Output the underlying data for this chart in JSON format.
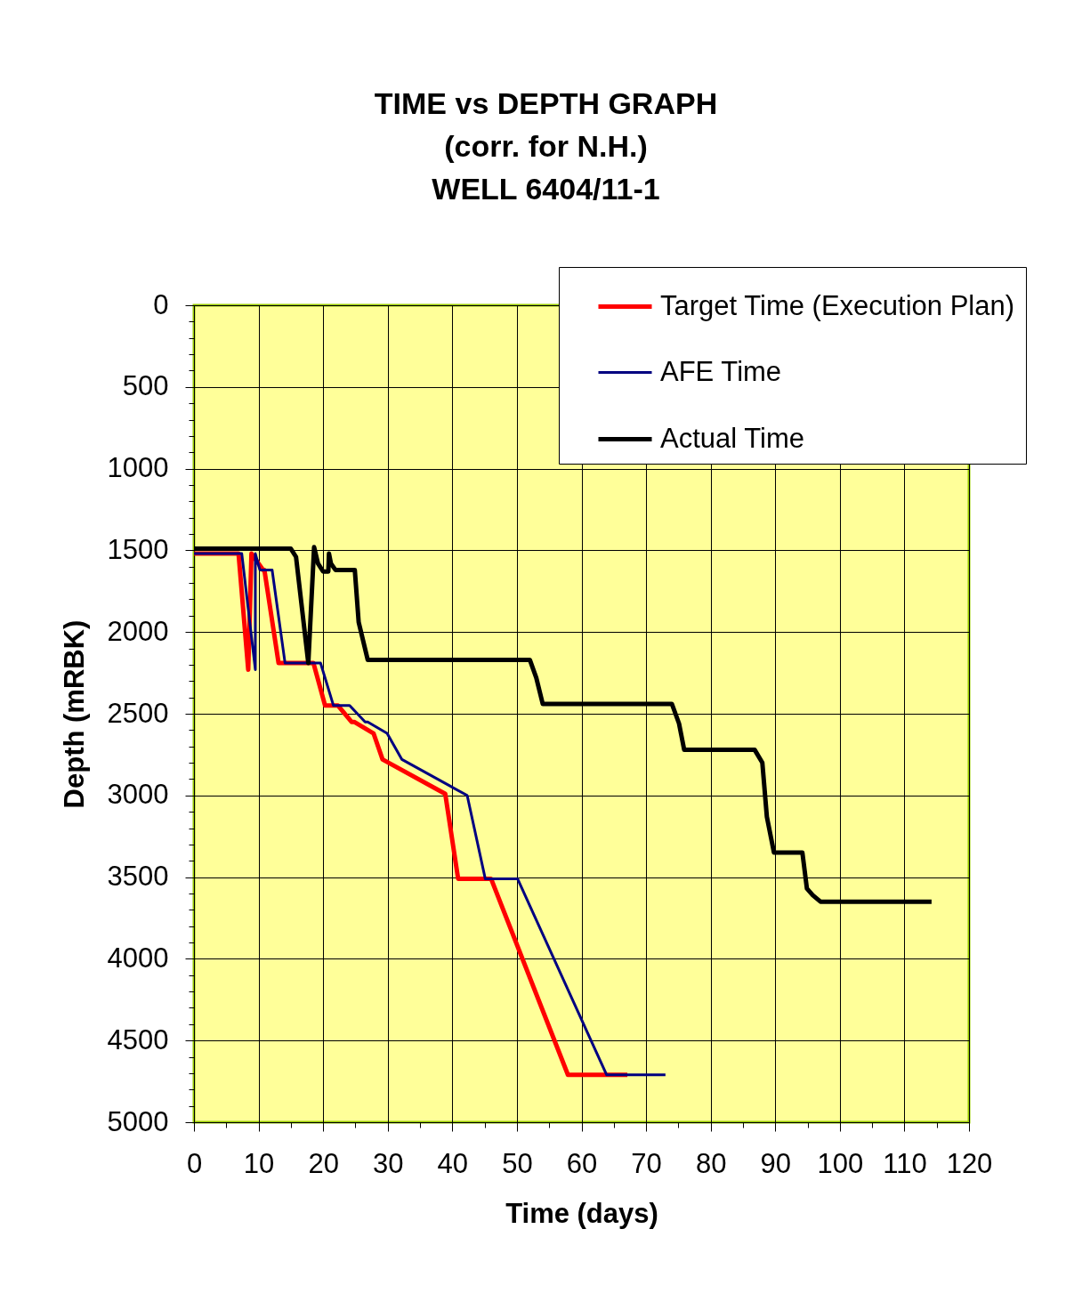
{
  "chart_data": {
    "type": "line",
    "title": "TIME vs DEPTH GRAPH\n(corr. for N.H.)\nWELL 6404/11-1",
    "xlabel": "Time (days)",
    "ylabel": "Depth (mRBK)",
    "legend": "top right",
    "grid": true,
    "xlim": [
      0,
      120
    ],
    "xticks": [
      0,
      {
        "value": 5,
        "label": null
      },
      10,
      {
        "value": 15,
        "label": null
      },
      20,
      {
        "value": 25,
        "label": null
      },
      30,
      {
        "value": 35,
        "label": null
      },
      40,
      {
        "value": 45,
        "label": null
      },
      50,
      {
        "value": 55,
        "label": null
      },
      60,
      {
        "value": 65,
        "label": null
      },
      70,
      {
        "value": 75,
        "label": null
      },
      80,
      {
        "value": 85,
        "label": null
      },
      90,
      {
        "value": 95,
        "label": null
      },
      100,
      {
        "value": 105,
        "label": null
      },
      110,
      {
        "value": 115,
        "label": null
      },
      120
    ],
    "ylim": [
      5000,
      0
    ],
    "yticks": [
      0,
      {
        "value": 100,
        "label": null
      },
      {
        "value": 200,
        "label": null
      },
      {
        "value": 300,
        "label": null
      },
      {
        "value": 400,
        "label": null
      },
      500,
      {
        "value": 600,
        "label": null
      },
      {
        "value": 700,
        "label": null
      },
      {
        "value": 800,
        "label": null
      },
      {
        "value": 900,
        "label": null
      },
      1000,
      {
        "value": 1100,
        "label": null
      },
      {
        "value": 1200,
        "label": null
      },
      {
        "value": 1300,
        "label": null
      },
      {
        "value": 1400,
        "label": null
      },
      1500,
      {
        "value": 1600,
        "label": null
      },
      {
        "value": 1700,
        "label": null
      },
      {
        "value": 1800,
        "label": null
      },
      {
        "value": 1900,
        "label": null
      },
      2000,
      {
        "value": 2100,
        "label": null
      },
      {
        "value": 2200,
        "label": null
      },
      {
        "value": 2300,
        "label": null
      },
      {
        "value": 2400,
        "label": null
      },
      2500,
      {
        "value": 2600,
        "label": null
      },
      {
        "value": 2700,
        "label": null
      },
      {
        "value": 2800,
        "label": null
      },
      {
        "value": 2900,
        "label": null
      },
      3000,
      {
        "value": 3100,
        "label": null
      },
      {
        "value": 3200,
        "label": null
      },
      {
        "value": 3300,
        "label": null
      },
      {
        "value": 3400,
        "label": null
      },
      3500,
      {
        "value": 3600,
        "label": null
      },
      {
        "value": 3700,
        "label": null
      },
      {
        "value": 3800,
        "label": null
      },
      {
        "value": 3900,
        "label": null
      },
      4000,
      {
        "value": 4100,
        "label": null
      },
      {
        "value": 4200,
        "label": null
      },
      {
        "value": 4300,
        "label": null
      },
      {
        "value": 4400,
        "label": null
      },
      4500,
      {
        "value": 4600,
        "label": null
      },
      {
        "value": 4700,
        "label": null
      },
      {
        "value": 4800,
        "label": null
      },
      {
        "value": 4900,
        "label": null
      },
      5000
    ],
    "series": [
      {
        "name": "Target Time (Execution Plan)",
        "color": "#ff0000",
        "x": [
          0,
          6.9,
          8.4,
          8.9,
          10.7,
          10.9,
          13.1,
          18.5,
          20.3,
          22.3,
          24.4,
          24.8,
          27.8,
          29.2,
          38.9,
          40.9,
          46.0,
          57.9,
          67.1
        ],
        "values": [
          1520,
          1520,
          2230,
          1520,
          1620,
          1620,
          2190,
          2190,
          2450,
          2450,
          2550,
          2550,
          2620,
          2780,
          2990,
          3510,
          3510,
          4710,
          4710
        ]
      },
      {
        "name": "AFE Time",
        "color": "#000080",
        "x": [
          0,
          7.4,
          9.5,
          9.5,
          10.2,
          12.1,
          14.1,
          19.6,
          21.6,
          24.1,
          26.5,
          26.9,
          29.9,
          32.2,
          42.3,
          45.1,
          50.1,
          63.9,
          73.0
        ],
        "values": [
          1520,
          1520,
          2230,
          1520,
          1620,
          1620,
          2190,
          2190,
          2450,
          2450,
          2550,
          2550,
          2620,
          2780,
          3000,
          3510,
          3510,
          4710,
          4710
        ]
      },
      {
        "name": "Actual Time",
        "color": "#000000",
        "x": [
          0,
          15.0,
          15.8,
          17.7,
          18.6,
          19.2,
          20.0,
          20.8,
          20.9,
          21.2,
          21.9,
          24.9,
          25.5,
          26.9,
          52.0,
          53.0,
          54.0,
          74.0,
          75.1,
          75.9,
          86.8,
          88.0,
          88.7,
          89.8,
          94.2,
          94.9,
          95.8,
          97.0,
          114.2
        ],
        "values": [
          1490,
          1490,
          1540,
          2190,
          1480,
          1580,
          1630,
          1630,
          1520,
          1580,
          1620,
          1620,
          1940,
          2170,
          2170,
          2280,
          2440,
          2440,
          2560,
          2720,
          2720,
          2800,
          3130,
          3350,
          3350,
          3570,
          3610,
          3650,
          3650
        ]
      }
    ]
  }
}
